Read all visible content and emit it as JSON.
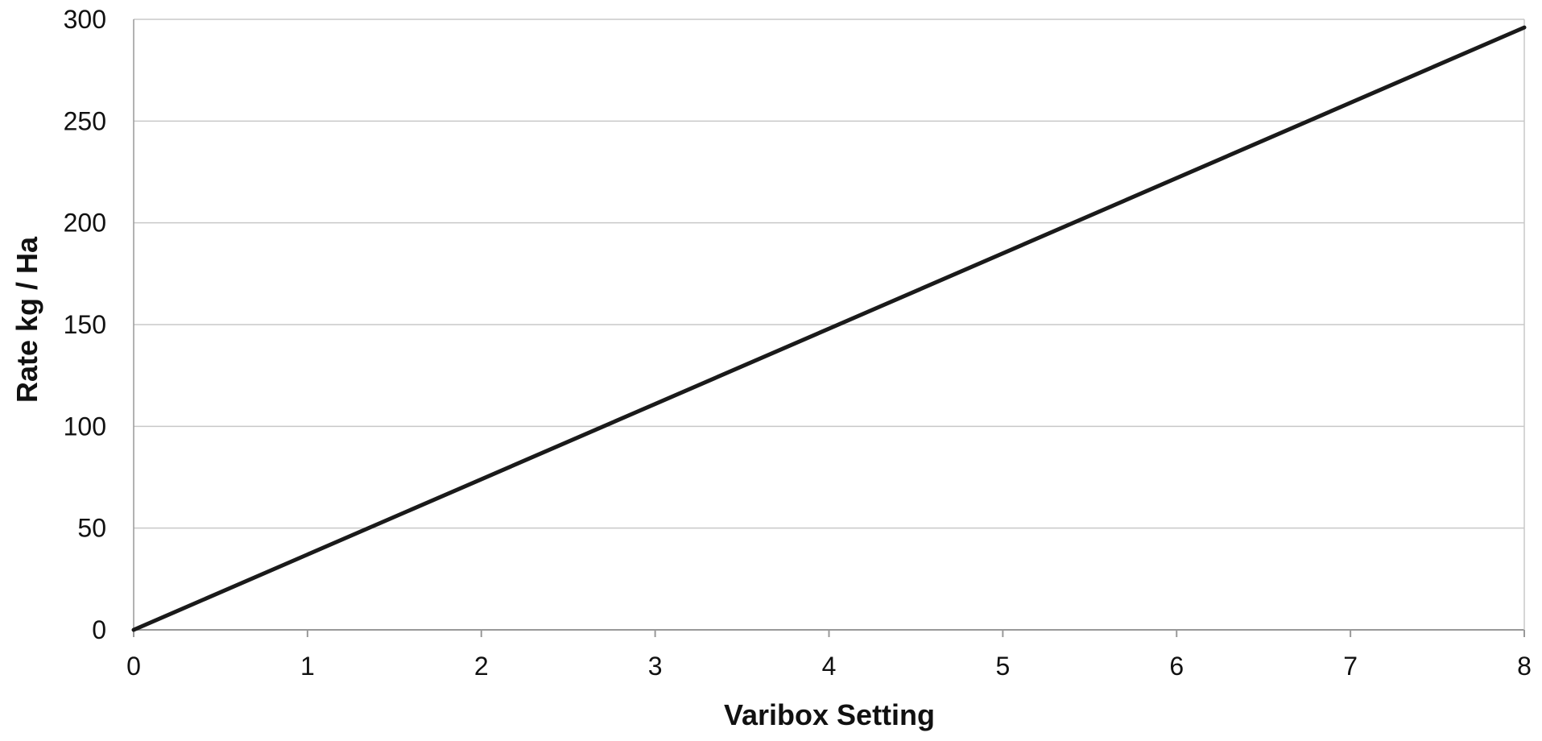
{
  "chart_data": {
    "type": "line",
    "xlabel": "Varibox Setting",
    "ylabel": "Rate kg / Ha",
    "xlim": [
      0,
      8
    ],
    "ylim": [
      0,
      300
    ],
    "x_ticks": [
      "0",
      "1",
      "2",
      "3",
      "4",
      "5",
      "6",
      "7",
      "8"
    ],
    "y_ticks": [
      "0",
      "50",
      "100",
      "150",
      "200",
      "250",
      "300"
    ],
    "grid": "horizontal",
    "legend": "none",
    "series": [
      {
        "x": [
          0,
          1,
          2,
          3,
          4,
          5,
          6,
          7,
          8
        ],
        "y": [
          0,
          37,
          74,
          111,
          148,
          185,
          222,
          259,
          296
        ]
      }
    ],
    "colors": {
      "line": "#1a1a1a",
      "grid": "#c8c8c8",
      "axis": "#999999"
    }
  }
}
